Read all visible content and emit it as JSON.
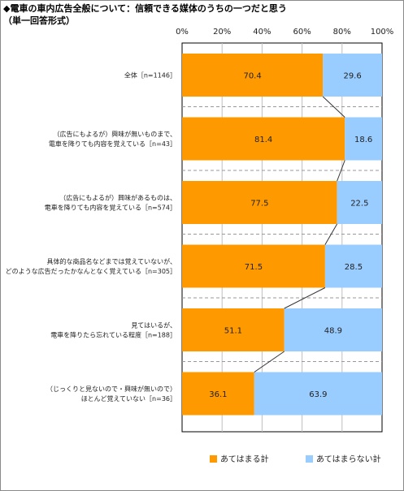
{
  "header": {
    "title": "◆電車の車内広告全般について：信頼できる媒体のうちの一つだと思う",
    "subtitle": "（単一回答形式）"
  },
  "colors": {
    "agree": "#ff9900",
    "disagree": "#99ccff",
    "grid": "#bfbfbf",
    "separator": "#999999",
    "connector": "#333333"
  },
  "chart_data": {
    "type": "bar",
    "orientation": "horizontal",
    "stacked": true,
    "percent_stacked": true,
    "title": "◆電車の車内広告全般について：信頼できる媒体のうちの一つだと思う",
    "subtitle": "（単一回答形式）",
    "xlim": [
      0,
      100
    ],
    "x_ticks": [
      "0%",
      "20%",
      "40%",
      "60%",
      "80%",
      "100%"
    ],
    "x_tick_values": [
      0,
      20,
      40,
      60,
      80,
      100
    ],
    "x_axis_position": "top",
    "grid": true,
    "legend_position": "bottom",
    "categories": [
      [
        "全体［n=1146］"
      ],
      [
        "（広告にもよるが）興味が無いものまで、",
        "電車を降りても内容を覚えている［n=43］"
      ],
      [
        "（広告にもよるが）興味があるものは、",
        "電車を降りても内容を覚えている［n=574］"
      ],
      [
        "具体的な商品名などまでは覚えていないが、",
        "どのような広告だったかなんとなく覚えている［n=305］"
      ],
      [
        "見てはいるが、",
        "電車を降りたら忘れている程度［n=188］"
      ],
      [
        "（じっくりと見ないので・興味が無いので）",
        "ほとんど覚えていない［n=36］"
      ]
    ],
    "series": [
      {
        "name": "あてはまる計",
        "values": [
          70.4,
          81.4,
          77.5,
          71.5,
          51.1,
          36.1
        ]
      },
      {
        "name": "あてはまらない計",
        "values": [
          29.6,
          18.6,
          22.5,
          28.5,
          48.9,
          63.9
        ]
      }
    ]
  }
}
